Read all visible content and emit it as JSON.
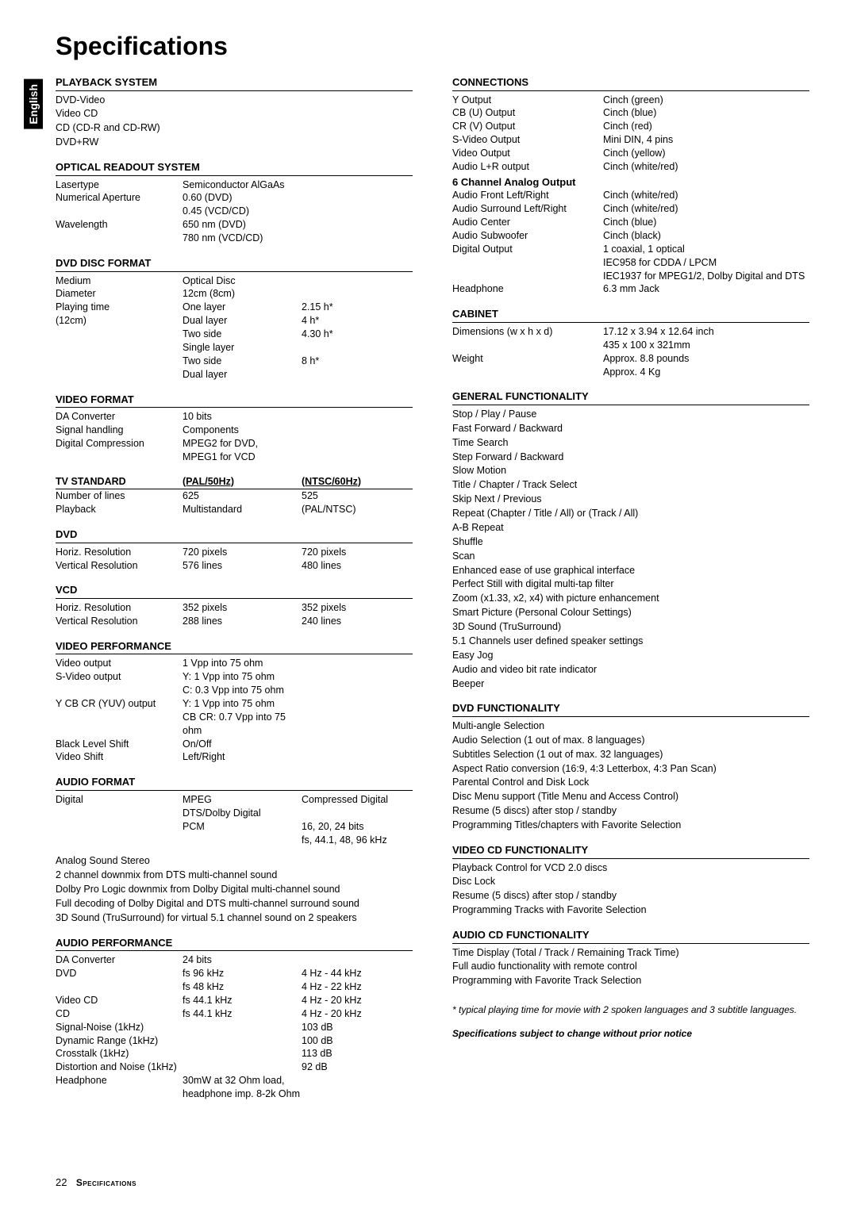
{
  "lang_tab": "English",
  "page_title": "Specifications",
  "footer_page": "22",
  "footer_label": "Specifications",
  "left": {
    "playback": {
      "title": "PLAYBACK SYSTEM",
      "items": [
        "DVD-Video",
        "Video CD",
        "CD (CD-R and CD-RW)",
        "DVD+RW"
      ]
    },
    "optical": {
      "title": "OPTICAL READOUT SYSTEM",
      "rows": [
        {
          "c1": "Lasertype",
          "c2": "Semiconductor AlGaAs"
        },
        {
          "c1": "Numerical Aperture",
          "c2": "0.60 (DVD)"
        },
        {
          "c1": "",
          "c2": "0.45 (VCD/CD)"
        },
        {
          "c1": "Wavelength",
          "c2": "650 nm (DVD)"
        },
        {
          "c1": "",
          "c2": "780 nm (VCD/CD)"
        }
      ]
    },
    "dvd_disc": {
      "title": "DVD DISC FORMAT",
      "rows": [
        {
          "c1": "Medium",
          "c2": "Optical Disc",
          "c3": ""
        },
        {
          "c1": "Diameter",
          "c2": "12cm (8cm)",
          "c3": ""
        },
        {
          "c1": "Playing time",
          "c2": "One layer",
          "c3": "2.15 h*"
        },
        {
          "c1": "(12cm)",
          "c2": "Dual layer",
          "c3": "4 h*"
        },
        {
          "c1": "",
          "c2": "Two side",
          "c3": "4.30 h*"
        },
        {
          "c1": "",
          "c2": "Single layer",
          "c3": ""
        },
        {
          "c1": "",
          "c2": "Two side",
          "c3": "8 h*"
        },
        {
          "c1": "",
          "c2": "Dual layer",
          "c3": ""
        }
      ]
    },
    "video_format": {
      "title": "VIDEO FORMAT",
      "rows": [
        {
          "c1": "DA Converter",
          "c2": "10 bits"
        },
        {
          "c1": "Signal handling",
          "c2": "Components"
        },
        {
          "c1": "Digital Compression",
          "c2": "MPEG2 for DVD,"
        },
        {
          "c1": "",
          "c2": "MPEG1 for VCD"
        }
      ]
    },
    "tv_std": {
      "head": {
        "c1": "TV STANDARD",
        "c2": "(PAL/50Hz)",
        "c3": "(NTSC/60Hz)"
      },
      "rows": [
        {
          "c1": "Number of lines",
          "c2": "625",
          "c3": "525"
        },
        {
          "c1": "Playback",
          "c2": "Multistandard",
          "c3": "(PAL/NTSC)"
        }
      ]
    },
    "dvd_sec": {
      "title": "DVD",
      "rows": [
        {
          "c1": "Horiz. Resolution",
          "c2": "720 pixels",
          "c3": "720 pixels"
        },
        {
          "c1": "Vertical Resolution",
          "c2": "576 lines",
          "c3": "480 lines"
        }
      ]
    },
    "vcd_sec": {
      "title": "VCD",
      "rows": [
        {
          "c1": "Horiz. Resolution",
          "c2": "352 pixels",
          "c3": "352 pixels"
        },
        {
          "c1": "Vertical Resolution",
          "c2": "288 lines",
          "c3": "240 lines"
        }
      ]
    },
    "video_perf": {
      "title": "VIDEO PERFORMANCE",
      "rows": [
        {
          "c1": "Video output",
          "c2": "1 Vpp into 75 ohm"
        },
        {
          "c1": "S-Video output",
          "c2": "Y: 1 Vpp into 75 ohm"
        },
        {
          "c1": "",
          "c2": "C: 0.3 Vpp into 75 ohm"
        },
        {
          "c1": "Y CB CR (YUV) output",
          "c2": "Y: 1 Vpp into 75 ohm"
        },
        {
          "c1": "",
          "c2": "CB CR: 0.7 Vpp into 75 ohm"
        },
        {
          "c1": "Black Level Shift",
          "c2": "On/Off"
        },
        {
          "c1": "Video Shift",
          "c2": "Left/Right"
        }
      ]
    },
    "audio_format": {
      "title": "AUDIO FORMAT",
      "rows": [
        {
          "c1": "Digital",
          "c2": "MPEG",
          "c3": "Compressed Digital"
        },
        {
          "c1": "",
          "c2": "DTS/Dolby Digital",
          "c3": ""
        },
        {
          "c1": "",
          "c2": "PCM",
          "c3": "16, 20, 24 bits"
        },
        {
          "c1": "",
          "c2": "",
          "c3": "fs, 44.1, 48, 96 kHz"
        }
      ],
      "notes": [
        "Analog Sound Stereo",
        "2 channel downmix from DTS multi-channel sound",
        "Dolby Pro Logic downmix from Dolby Digital multi-channel sound",
        "Full decoding of Dolby Digital and DTS multi-channel surround sound",
        "3D Sound (TruSurround) for virtual 5.1 channel sound on 2 speakers"
      ]
    },
    "audio_perf": {
      "title": "AUDIO PERFORMANCE",
      "rows": [
        {
          "c1": "DA Converter",
          "c2": "24 bits",
          "c3": ""
        },
        {
          "c1": "DVD",
          "c2": "fs 96 kHz",
          "c3": "4 Hz - 44 kHz"
        },
        {
          "c1": "",
          "c2": "fs 48 kHz",
          "c3": "4 Hz - 22 kHz"
        },
        {
          "c1": "Video CD",
          "c2": "fs 44.1 kHz",
          "c3": "4 Hz - 20 kHz"
        },
        {
          "c1": "CD",
          "c2": "fs 44.1 kHz",
          "c3": "4 Hz - 20 kHz"
        },
        {
          "c1": "Signal-Noise (1kHz)",
          "c2": "",
          "c3": "103 dB"
        },
        {
          "c1": "Dynamic Range (1kHz)",
          "c2": "",
          "c3": "100 dB"
        },
        {
          "c1": "Crosstalk (1kHz)",
          "c2": "",
          "c3": "113 dB"
        },
        {
          "c1": "Distortion and Noise (1kHz)",
          "c2": "",
          "c3": "92 dB"
        },
        {
          "c1": "Headphone",
          "c2": "30mW at 32 Ohm load,",
          "c3": ""
        },
        {
          "c1": "",
          "c2": "headphone imp. 8-2k Ohm",
          "c3": ""
        }
      ]
    }
  },
  "right": {
    "connections": {
      "title": "CONNECTIONS",
      "rows": [
        {
          "r1": "Y Output",
          "r2": "Cinch (green)"
        },
        {
          "r1": "CB (U) Output",
          "r2": "Cinch (blue)"
        },
        {
          "r1": "CR (V) Output",
          "r2": "Cinch (red)"
        },
        {
          "r1": "S-Video Output",
          "r2": "Mini DIN, 4 pins"
        },
        {
          "r1": "Video Output",
          "r2": "Cinch (yellow)"
        },
        {
          "r1": "Audio L+R output",
          "r2": "Cinch (white/red)"
        }
      ],
      "analog_title": "6 Channel Analog Output",
      "analog_rows": [
        {
          "r1": "Audio Front Left/Right",
          "r2": "Cinch (white/red)"
        },
        {
          "r1": "Audio Surround Left/Right",
          "r2": "Cinch (white/red)"
        },
        {
          "r1": "Audio Center",
          "r2": "Cinch (blue)"
        },
        {
          "r1": "Audio Subwoofer",
          "r2": "Cinch (black)"
        },
        {
          "r1": "Digital Output",
          "r2": "1 coaxial, 1 optical"
        },
        {
          "r1": "",
          "r2": "IEC958 for CDDA / LPCM"
        },
        {
          "r1": "",
          "r2": "IEC1937 for MPEG1/2, Dolby Digital and DTS"
        },
        {
          "r1": "Headphone",
          "r2": "6.3 mm Jack"
        }
      ]
    },
    "cabinet": {
      "title": "CABINET",
      "rows": [
        {
          "r1": "Dimensions (w x h x d)",
          "r2": "17.12 x 3.94 x 12.64 inch"
        },
        {
          "r1": "",
          "r2": "435 x 100 x 321mm"
        },
        {
          "r1": "Weight",
          "r2": "Approx. 8.8 pounds"
        },
        {
          "r1": "",
          "r2": "Approx. 4 Kg"
        }
      ]
    },
    "general": {
      "title": "GENERAL FUNCTIONALITY",
      "items": [
        "Stop / Play / Pause",
        "Fast Forward / Backward",
        "Time Search",
        "Step Forward / Backward",
        "Slow Motion",
        "Title / Chapter / Track Select",
        "Skip Next / Previous",
        "Repeat (Chapter / Title / All) or (Track / All)",
        "A-B Repeat",
        "Shuffle",
        "Scan",
        "Enhanced ease of use graphical interface",
        "Perfect Still with digital multi-tap filter",
        "Zoom (x1.33, x2, x4) with picture enhancement",
        "Smart Picture (Personal Colour Settings)",
        "3D Sound (TruSurround)",
        "5.1 Channels user defined speaker settings",
        "Easy Jog",
        "Audio and video bit rate indicator",
        "Beeper"
      ]
    },
    "dvd_func": {
      "title": "DVD FUNCTIONALITY",
      "items": [
        "Multi-angle Selection",
        "Audio Selection (1 out of max. 8 languages)",
        "Subtitles Selection (1 out of max. 32 languages)",
        "Aspect Ratio conversion (16:9, 4:3 Letterbox, 4:3 Pan Scan)",
        "Parental Control and Disk Lock",
        "Disc Menu support (Title Menu and Access Control)",
        "Resume (5 discs) after stop / standby",
        "Programming Titles/chapters with Favorite Selection"
      ]
    },
    "vcd_func": {
      "title": "VIDEO CD FUNCTIONALITY",
      "items": [
        "Playback Control for VCD 2.0 discs",
        "Disc Lock",
        "Resume (5 discs) after stop / standby",
        "Programming Tracks with Favorite Selection"
      ]
    },
    "acd_func": {
      "title": "AUDIO CD FUNCTIONALITY",
      "items": [
        "Time Display (Total / Track / Remaining Track Time)",
        "Full audio functionality with remote control",
        "Programming with Favorite Track Selection"
      ]
    },
    "footnote": "*   typical playing time for movie with 2 spoken languages and 3 subtitle languages.",
    "subject": "Specifications subject to change without prior notice"
  }
}
